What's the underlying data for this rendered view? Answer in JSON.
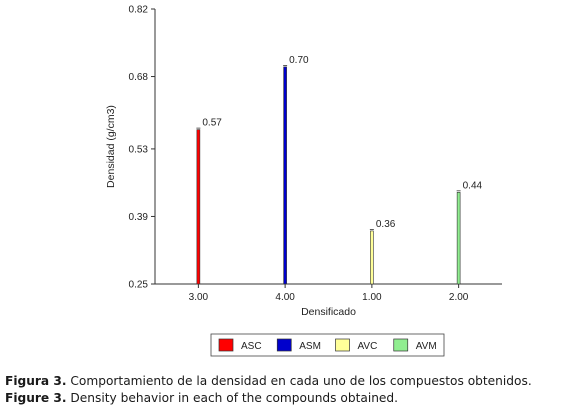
{
  "chart_data": {
    "type": "bar",
    "title": "",
    "xlabel": "Densificado",
    "ylabel": "Densidad (g/cm3)",
    "ylim": [
      0.25,
      0.82
    ],
    "yticks": [
      "0.82",
      "0.68",
      "0.53",
      "0.39",
      "0.25"
    ],
    "ytick_values": [
      0.82,
      0.68,
      0.53,
      0.39,
      0.25
    ],
    "categories": [
      "3.00",
      "4.00",
      "1.00",
      "2.00"
    ],
    "series": [
      {
        "name": "ASC",
        "color": "#ff0000",
        "values": [
          0.57,
          null,
          null,
          null
        ]
      },
      {
        "name": "ASM",
        "color": "#0000cc",
        "values": [
          null,
          0.7,
          null,
          null
        ]
      },
      {
        "name": "AVC",
        "color": "#ffff99",
        "values": [
          null,
          null,
          0.36,
          null
        ]
      },
      {
        "name": "AVM",
        "color": "#90ee90",
        "values": [
          null,
          null,
          null,
          0.44
        ]
      }
    ],
    "data_labels": [
      "0.57",
      "0.70",
      "0.36",
      "0.44"
    ],
    "legend_position": "bottom",
    "grid": false
  },
  "captions": [
    {
      "label": "Figura 3.",
      "text": " Comportamiento de la densidad en cada uno de los compuestos obtenidos."
    },
    {
      "label": "Figure 3.",
      "text": " Density behavior in each of the compounds obtained."
    }
  ]
}
